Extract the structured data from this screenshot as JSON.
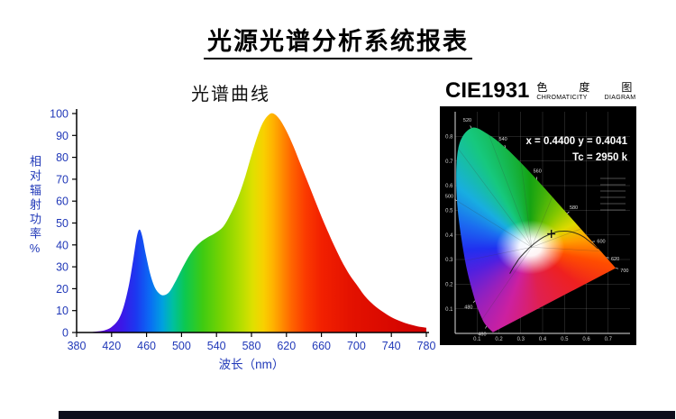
{
  "page": {
    "title": "光源光谱分析系统报表"
  },
  "colors": {
    "axis_label_blue": "#2038b8",
    "cie_background": "#000000",
    "page_background": "#ffffff"
  },
  "chart_data": [
    {
      "type": "area",
      "name": "spectrum-curve",
      "title": "光谱曲线",
      "xlabel": "波长（nm）",
      "ylabel": "相对辐射功率%",
      "xlim": [
        380,
        780
      ],
      "ylim": [
        0,
        100
      ],
      "x_ticks": [
        380,
        420,
        460,
        500,
        540,
        580,
        620,
        660,
        700,
        740,
        780
      ],
      "y_ticks": [
        0,
        10,
        20,
        30,
        40,
        50,
        60,
        70,
        80,
        90,
        100
      ],
      "grid": false,
      "points": [
        [
          380,
          0
        ],
        [
          392,
          0
        ],
        [
          402,
          0.4
        ],
        [
          412,
          1
        ],
        [
          420,
          2.5
        ],
        [
          428,
          6
        ],
        [
          434,
          12
        ],
        [
          440,
          22
        ],
        [
          445,
          34
        ],
        [
          449,
          44
        ],
        [
          452,
          47
        ],
        [
          455,
          44
        ],
        [
          459,
          36
        ],
        [
          464,
          27
        ],
        [
          469,
          21
        ],
        [
          474,
          18
        ],
        [
          479,
          17
        ],
        [
          486,
          18.5
        ],
        [
          494,
          24
        ],
        [
          503,
          31
        ],
        [
          512,
          37
        ],
        [
          521,
          41
        ],
        [
          530,
          43.5
        ],
        [
          539,
          45.5
        ],
        [
          548,
          48.5
        ],
        [
          556,
          54
        ],
        [
          564,
          61
        ],
        [
          572,
          70
        ],
        [
          580,
          81
        ],
        [
          588,
          91
        ],
        [
          594,
          96.5
        ],
        [
          600,
          99.5
        ],
        [
          605,
          100
        ],
        [
          612,
          97.5
        ],
        [
          620,
          92
        ],
        [
          628,
          85
        ],
        [
          636,
          77
        ],
        [
          644,
          69
        ],
        [
          652,
          61
        ],
        [
          660,
          53
        ],
        [
          668,
          45.5
        ],
        [
          676,
          38.5
        ],
        [
          684,
          32
        ],
        [
          692,
          26.5
        ],
        [
          700,
          22
        ],
        [
          710,
          16.5
        ],
        [
          720,
          12.5
        ],
        [
          730,
          9.5
        ],
        [
          740,
          7
        ],
        [
          750,
          5.2
        ],
        [
          760,
          3.8
        ],
        [
          770,
          2.8
        ],
        [
          780,
          2.2
        ]
      ],
      "gradient_stops": [
        [
          0.0,
          "#6a00c8"
        ],
        [
          0.08,
          "#5808d8"
        ],
        [
          0.13,
          "#3a18e8"
        ],
        [
          0.17,
          "#1c38f0"
        ],
        [
          0.21,
          "#0a6cf4"
        ],
        [
          0.245,
          "#00a0e0"
        ],
        [
          0.275,
          "#00c0a0"
        ],
        [
          0.31,
          "#0cc850"
        ],
        [
          0.36,
          "#3ecb12"
        ],
        [
          0.42,
          "#7ed400"
        ],
        [
          0.47,
          "#b4de00"
        ],
        [
          0.505,
          "#e0e000"
        ],
        [
          0.535,
          "#f8d000"
        ],
        [
          0.56,
          "#ffb400"
        ],
        [
          0.585,
          "#ff9000"
        ],
        [
          0.615,
          "#ff6400"
        ],
        [
          0.655,
          "#fb3a00"
        ],
        [
          0.7,
          "#f22000"
        ],
        [
          0.78,
          "#e41200"
        ],
        [
          1.0,
          "#cf0000"
        ]
      ]
    },
    {
      "type": "scatter",
      "name": "cie1931-chromaticity",
      "title": "CIE1931",
      "subtitle_cn": "色 度 图",
      "subtitle_en": "CHROMATICITY DIAGRAM",
      "readout_line1": "x = 0.4400 y = 0.4041",
      "readout_line2": "Tc = 2950 k",
      "point": [
        0.44,
        0.4041
      ],
      "xlim": [
        0,
        0.8
      ],
      "ylim": [
        0,
        0.9
      ],
      "x_ticks": [
        0.1,
        0.2,
        0.3,
        0.4,
        0.5,
        0.6,
        0.7
      ],
      "y_ticks": [
        0.1,
        0.2,
        0.3,
        0.4,
        0.5,
        0.6,
        0.7,
        0.8
      ],
      "locus": [
        [
          380,
          0.1741,
          0.005
        ],
        [
          420,
          0.1714,
          0.0051
        ],
        [
          440,
          0.1644,
          0.0109
        ],
        [
          460,
          0.144,
          0.0297
        ],
        [
          470,
          0.1241,
          0.0578
        ],
        [
          480,
          0.0913,
          0.1327
        ],
        [
          490,
          0.0454,
          0.295
        ],
        [
          500,
          0.0082,
          0.5384
        ],
        [
          510,
          0.0139,
          0.7502
        ],
        [
          520,
          0.0743,
          0.8338
        ],
        [
          530,
          0.1547,
          0.8059
        ],
        [
          540,
          0.2296,
          0.7543
        ],
        [
          550,
          0.3016,
          0.6923
        ],
        [
          560,
          0.3731,
          0.6245
        ],
        [
          570,
          0.4441,
          0.5547
        ],
        [
          580,
          0.5125,
          0.4866
        ],
        [
          590,
          0.5752,
          0.4242
        ],
        [
          600,
          0.627,
          0.3725
        ],
        [
          610,
          0.6658,
          0.334
        ],
        [
          620,
          0.6915,
          0.3083
        ],
        [
          640,
          0.719,
          0.2809
        ],
        [
          700,
          0.7347,
          0.2653
        ]
      ],
      "locus_labels": [
        460,
        480,
        500,
        520,
        540,
        560,
        580,
        600,
        620,
        700
      ],
      "planckian": [
        [
          0.653,
          0.344
        ],
        [
          0.585,
          0.393
        ],
        [
          0.527,
          0.413
        ],
        [
          0.476,
          0.414
        ],
        [
          0.437,
          0.404
        ],
        [
          0.405,
          0.391
        ],
        [
          0.38,
          0.377
        ],
        [
          0.345,
          0.352
        ],
        [
          0.322,
          0.332
        ],
        [
          0.307,
          0.318
        ],
        [
          0.292,
          0.303
        ],
        [
          0.281,
          0.288
        ],
        [
          0.266,
          0.268
        ],
        [
          0.25,
          0.243
        ]
      ]
    }
  ]
}
